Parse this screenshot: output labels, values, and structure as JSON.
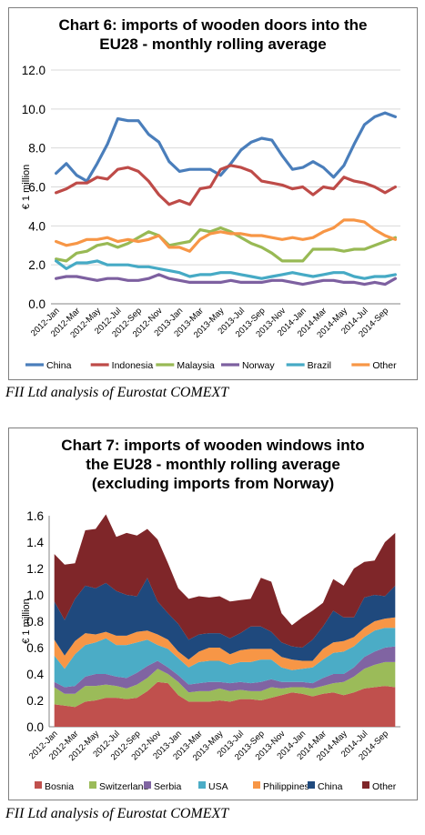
{
  "chart_data": [
    {
      "type": "line",
      "title": "Chart 6: imports of wooden doors into the EU28 - monthly rolling average",
      "title_lines": [
        "Chart 6: imports of wooden doors into the",
        "EU28 - monthly rolling average"
      ],
      "ylabel": "€ 1 million",
      "ylim": [
        0,
        12
      ],
      "yticks": [
        "0.0",
        "2.0",
        "4.0",
        "6.0",
        "8.0",
        "10.0",
        "12.0"
      ],
      "grid": true,
      "legend": "bottom",
      "x": [
        "2012-Jan",
        "2012-Feb",
        "2012-Mar",
        "2012-Apr",
        "2012-May",
        "2012-Jun",
        "2012-Jul",
        "2012-Aug",
        "2012-Sep",
        "2012-Oct",
        "2012-Nov",
        "2012-Dec",
        "2013-Jan",
        "2013-Feb",
        "2013-Mar",
        "2013-Apr",
        "2013-May",
        "2013-Jun",
        "2013-Jul",
        "2013-Aug",
        "2013-Sep",
        "2013-Oct",
        "2013-Nov",
        "2013-Dec",
        "2014-Jan",
        "2014-Feb",
        "2014-Mar",
        "2014-Apr",
        "2014-May",
        "2014-Jun",
        "2014-Jul",
        "2014-Aug",
        "2014-Sep",
        "2014-Oct"
      ],
      "xtick_labels": [
        "2012-Jan",
        "2012-Mar",
        "2012-May",
        "2012-Jul",
        "2012-Sep",
        "2012-Nov",
        "2013-Jan",
        "2013-Mar",
        "2013-May",
        "2013-Jul",
        "2013-Sep",
        "2013-Nov",
        "2014-Jan",
        "2014-Mar",
        "2014-May",
        "2014-Jul",
        "2014-Sep"
      ],
      "series": [
        {
          "name": "China",
          "color": "#4a7ebb",
          "values": [
            6.7,
            7.2,
            6.6,
            6.3,
            7.2,
            8.2,
            9.5,
            9.4,
            9.4,
            8.7,
            8.3,
            7.3,
            6.8,
            6.9,
            6.9,
            6.9,
            6.6,
            7.2,
            7.9,
            8.3,
            8.5,
            8.4,
            7.6,
            6.9,
            7.0,
            7.3,
            7.0,
            6.5,
            7.1,
            8.2,
            9.2,
            9.6,
            9.8,
            9.6
          ]
        },
        {
          "name": "Indonesia",
          "color": "#be4b48",
          "values": [
            5.7,
            5.9,
            6.2,
            6.2,
            6.5,
            6.4,
            6.9,
            7.0,
            6.8,
            6.3,
            5.6,
            5.1,
            5.3,
            5.1,
            5.9,
            6.0,
            6.9,
            7.1,
            7.0,
            6.8,
            6.3,
            6.2,
            6.1,
            5.9,
            6.0,
            5.6,
            6.0,
            5.9,
            6.5,
            6.3,
            6.2,
            6.0,
            5.7,
            6.0
          ]
        },
        {
          "name": "Malaysia",
          "color": "#98b954",
          "values": [
            2.3,
            2.2,
            2.6,
            2.7,
            3.0,
            3.1,
            2.9,
            3.1,
            3.4,
            3.7,
            3.5,
            3.0,
            3.1,
            3.2,
            3.8,
            3.7,
            3.9,
            3.7,
            3.4,
            3.1,
            2.9,
            2.6,
            2.2,
            2.2,
            2.2,
            2.8,
            2.8,
            2.8,
            2.7,
            2.8,
            2.8,
            3.0,
            3.2,
            3.4
          ]
        },
        {
          "name": "Norway",
          "color": "#7d60a0",
          "values": [
            1.3,
            1.4,
            1.4,
            1.3,
            1.2,
            1.3,
            1.3,
            1.2,
            1.2,
            1.3,
            1.5,
            1.3,
            1.2,
            1.1,
            1.1,
            1.1,
            1.1,
            1.2,
            1.1,
            1.1,
            1.1,
            1.2,
            1.2,
            1.1,
            1.0,
            1.1,
            1.2,
            1.2,
            1.1,
            1.1,
            1.0,
            1.1,
            1.0,
            1.3
          ]
        },
        {
          "name": "Brazil",
          "color": "#46aac5",
          "values": [
            2.2,
            1.8,
            2.1,
            2.1,
            2.2,
            2.0,
            2.0,
            2.0,
            1.9,
            1.9,
            1.8,
            1.7,
            1.6,
            1.4,
            1.5,
            1.5,
            1.6,
            1.6,
            1.5,
            1.4,
            1.3,
            1.4,
            1.5,
            1.6,
            1.5,
            1.4,
            1.5,
            1.6,
            1.6,
            1.4,
            1.3,
            1.4,
            1.4,
            1.5
          ]
        },
        {
          "name": "Other",
          "color": "#f79646",
          "values": [
            3.2,
            3.0,
            3.1,
            3.3,
            3.3,
            3.4,
            3.2,
            3.3,
            3.2,
            3.3,
            3.5,
            2.9,
            2.9,
            2.7,
            3.3,
            3.6,
            3.7,
            3.6,
            3.6,
            3.5,
            3.5,
            3.4,
            3.3,
            3.4,
            3.3,
            3.4,
            3.7,
            3.9,
            4.3,
            4.3,
            4.2,
            3.8,
            3.5,
            3.3
          ]
        }
      ]
    },
    {
      "type": "area",
      "stacked": true,
      "title": "Chart 7: imports of wooden windows into the EU28 - monthly rolling average (excluding imports from Norway)",
      "title_lines": [
        "Chart 7: imports of wooden windows into",
        "the EU28 - monthly rolling average",
        "(excluding imports from Norway)"
      ],
      "ylabel": "€ 1 million",
      "ylim": [
        0,
        1.6
      ],
      "yticks": [
        "0.0",
        "0.2",
        "0.4",
        "0.6",
        "0.8",
        "1.0",
        "1.2",
        "1.4",
        "1.6"
      ],
      "grid": false,
      "legend": "bottom",
      "x": [
        "2012-Jan",
        "2012-Feb",
        "2012-Mar",
        "2012-Apr",
        "2012-May",
        "2012-Jun",
        "2012-Jul",
        "2012-Aug",
        "2012-Sep",
        "2012-Oct",
        "2012-Nov",
        "2012-Dec",
        "2013-Jan",
        "2013-Feb",
        "2013-Mar",
        "2013-Apr",
        "2013-May",
        "2013-Jun",
        "2013-Jul",
        "2013-Aug",
        "2013-Sep",
        "2013-Oct",
        "2013-Nov",
        "2013-Dec",
        "2014-Jan",
        "2014-Feb",
        "2014-Mar",
        "2014-Apr",
        "2014-May",
        "2014-Jun",
        "2014-Jul",
        "2014-Aug",
        "2014-Sep",
        "2014-Oct"
      ],
      "xtick_labels": [
        "2012-Jan",
        "2012-Mar",
        "2012-May",
        "2012-Jul",
        "2012-Sep",
        "2012-Nov",
        "2013-Jan",
        "2013-Mar",
        "2013-May",
        "2013-Jul",
        "2013-Sep",
        "2013-Nov",
        "2014-Jan",
        "2014-Mar",
        "2014-May",
        "2014-Jul",
        "2014-Sep"
      ],
      "series": [
        {
          "name": "Bosnia",
          "color": "#c0504d",
          "values": [
            0.17,
            0.16,
            0.15,
            0.19,
            0.2,
            0.22,
            0.22,
            0.21,
            0.22,
            0.27,
            0.34,
            0.33,
            0.24,
            0.19,
            0.19,
            0.19,
            0.2,
            0.19,
            0.21,
            0.21,
            0.2,
            0.22,
            0.24,
            0.26,
            0.25,
            0.23,
            0.25,
            0.26,
            0.24,
            0.26,
            0.29,
            0.3,
            0.31,
            0.3
          ]
        },
        {
          "name": "Switzerland",
          "color": "#9bbb59",
          "values": [
            0.13,
            0.09,
            0.1,
            0.12,
            0.11,
            0.1,
            0.09,
            0.08,
            0.1,
            0.1,
            0.1,
            0.07,
            0.1,
            0.07,
            0.08,
            0.08,
            0.09,
            0.08,
            0.07,
            0.06,
            0.07,
            0.08,
            0.05,
            0.04,
            0.05,
            0.06,
            0.06,
            0.07,
            0.1,
            0.12,
            0.15,
            0.17,
            0.18,
            0.19
          ]
        },
        {
          "name": "Serbia",
          "color": "#8064a2",
          "values": [
            0.04,
            0.05,
            0.06,
            0.07,
            0.09,
            0.08,
            0.07,
            0.08,
            0.09,
            0.09,
            0.06,
            0.05,
            0.05,
            0.06,
            0.06,
            0.07,
            0.05,
            0.06,
            0.06,
            0.06,
            0.07,
            0.06,
            0.05,
            0.04,
            0.04,
            0.04,
            0.06,
            0.07,
            0.06,
            0.07,
            0.09,
            0.1,
            0.11,
            0.12
          ]
        },
        {
          "name": "USA",
          "color": "#4bacc6",
          "values": [
            0.2,
            0.14,
            0.24,
            0.24,
            0.24,
            0.27,
            0.24,
            0.25,
            0.23,
            0.2,
            0.12,
            0.14,
            0.13,
            0.13,
            0.16,
            0.16,
            0.16,
            0.14,
            0.15,
            0.16,
            0.17,
            0.15,
            0.11,
            0.09,
            0.1,
            0.12,
            0.14,
            0.16,
            0.17,
            0.16,
            0.15,
            0.16,
            0.15,
            0.14
          ]
        },
        {
          "name": "Philippines",
          "color": "#f79646",
          "values": [
            0.12,
            0.1,
            0.1,
            0.09,
            0.06,
            0.05,
            0.07,
            0.07,
            0.08,
            0.07,
            0.08,
            0.07,
            0.05,
            0.06,
            0.08,
            0.1,
            0.1,
            0.08,
            0.09,
            0.1,
            0.08,
            0.08,
            0.08,
            0.08,
            0.06,
            0.05,
            0.08,
            0.08,
            0.08,
            0.07,
            0.07,
            0.07,
            0.07,
            0.08
          ]
        },
        {
          "name": "China",
          "color": "#1f497d",
          "values": [
            0.29,
            0.27,
            0.32,
            0.36,
            0.35,
            0.37,
            0.34,
            0.31,
            0.27,
            0.4,
            0.25,
            0.2,
            0.21,
            0.15,
            0.13,
            0.11,
            0.11,
            0.12,
            0.13,
            0.17,
            0.17,
            0.13,
            0.11,
            0.1,
            0.1,
            0.16,
            0.17,
            0.24,
            0.18,
            0.15,
            0.23,
            0.2,
            0.17,
            0.24
          ]
        },
        {
          "name": "Other",
          "color": "#7f2629",
          "values": [
            0.36,
            0.42,
            0.27,
            0.42,
            0.45,
            0.52,
            0.41,
            0.47,
            0.46,
            0.37,
            0.47,
            0.38,
            0.27,
            0.31,
            0.29,
            0.27,
            0.28,
            0.28,
            0.25,
            0.21,
            0.37,
            0.38,
            0.22,
            0.16,
            0.23,
            0.22,
            0.18,
            0.24,
            0.24,
            0.37,
            0.27,
            0.26,
            0.41,
            0.4
          ]
        }
      ]
    }
  ],
  "captions": {
    "chart6": "FII Ltd analysis of Eurostat COMEXT",
    "chart7": "FII Ltd analysis of Eurostat COMEXT"
  }
}
